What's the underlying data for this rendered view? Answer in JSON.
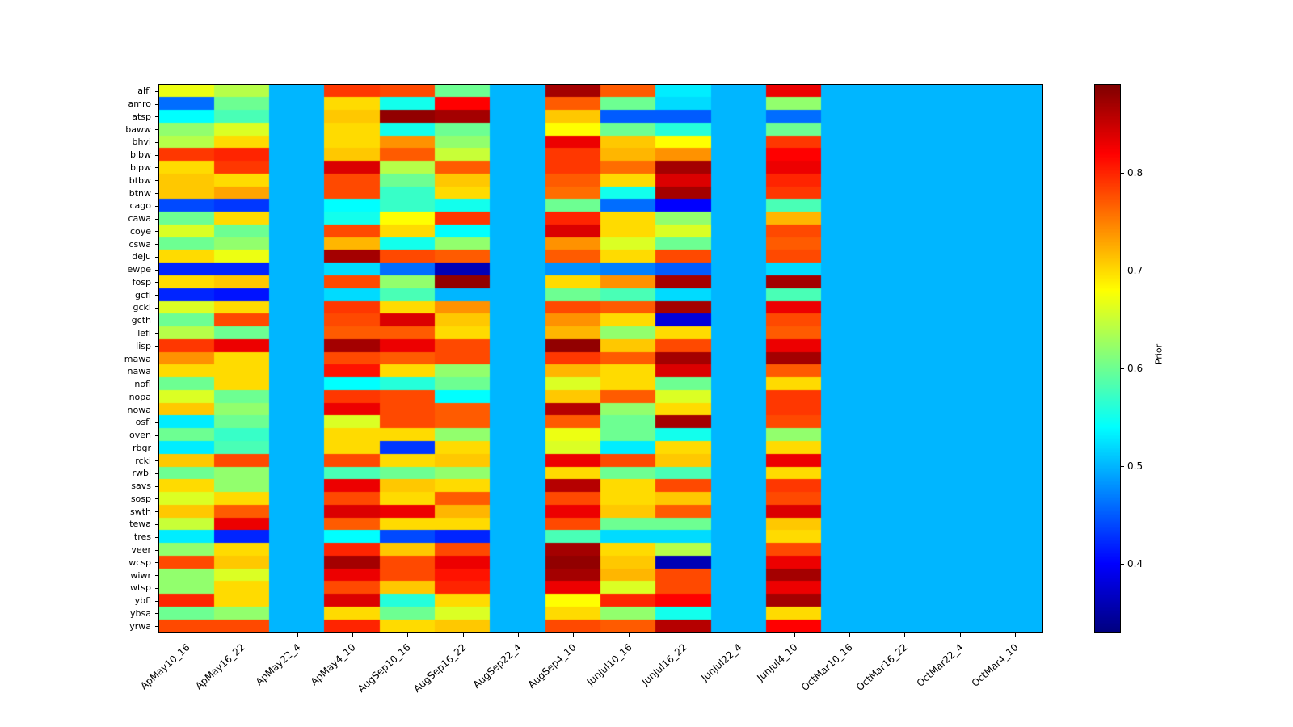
{
  "chart_data": {
    "type": "heatmap",
    "colormap": "jet",
    "vmin": 0.33,
    "vmax": 0.89,
    "uniform_fill_value": 0.5,
    "colorbar_label": "Prior",
    "colorbar_ticks": [
      0.8,
      0.7,
      0.6,
      0.5,
      0.4
    ],
    "rows": [
      "alfl",
      "amro",
      "atsp",
      "baww",
      "bhvi",
      "blbw",
      "blpw",
      "btbw",
      "btnw",
      "cago",
      "cawa",
      "coye",
      "cswa",
      "deju",
      "ewpe",
      "fosp",
      "gcfl",
      "gcki",
      "gcth",
      "lefl",
      "lisp",
      "mawa",
      "nawa",
      "nofl",
      "nopa",
      "nowa",
      "osfl",
      "oven",
      "rbgr",
      "rcki",
      "rwbl",
      "savs",
      "sosp",
      "swth",
      "tewa",
      "tres",
      "veer",
      "wcsp",
      "wiwr",
      "wtsp",
      "ybfl",
      "ybsa",
      "yrwa"
    ],
    "columns": [
      "ApMay10_16",
      "ApMay16_22",
      "ApMay22_4",
      "ApMay4_10",
      "AugSep10_16",
      "AugSep16_22",
      "AugSep22_4",
      "AugSep4_10",
      "JunJul10_16",
      "JunJul16_22",
      "JunJul22_4",
      "JunJul4_10",
      "OctMar10_16",
      "OctMar16_22",
      "OctMar22_4",
      "OctMar4_10"
    ],
    "values": [
      [
        0.67,
        0.64,
        0.5,
        0.79,
        0.78,
        0.6,
        0.5,
        0.87,
        0.77,
        0.53,
        0.5,
        0.83,
        0.5,
        0.5,
        0.5,
        0.5
      ],
      [
        0.46,
        0.6,
        0.5,
        0.7,
        0.55,
        0.82,
        0.5,
        0.77,
        0.6,
        0.52,
        0.5,
        0.62,
        0.5,
        0.5,
        0.5,
        0.5
      ],
      [
        0.54,
        0.58,
        0.5,
        0.71,
        0.88,
        0.87,
        0.5,
        0.71,
        0.45,
        0.45,
        0.5,
        0.46,
        0.5,
        0.5,
        0.5,
        0.5
      ],
      [
        0.62,
        0.66,
        0.5,
        0.7,
        0.55,
        0.6,
        0.5,
        0.68,
        0.6,
        0.56,
        0.5,
        0.6,
        0.5,
        0.5,
        0.5,
        0.5
      ],
      [
        0.64,
        0.7,
        0.5,
        0.7,
        0.74,
        0.62,
        0.5,
        0.83,
        0.71,
        0.68,
        0.5,
        0.79,
        0.5,
        0.5,
        0.5,
        0.5
      ],
      [
        0.79,
        0.8,
        0.5,
        0.71,
        0.77,
        0.65,
        0.5,
        0.79,
        0.72,
        0.74,
        0.5,
        0.82,
        0.5,
        0.5,
        0.5,
        0.5
      ],
      [
        0.7,
        0.79,
        0.5,
        0.84,
        0.64,
        0.77,
        0.5,
        0.79,
        0.76,
        0.87,
        0.5,
        0.83,
        0.5,
        0.5,
        0.5,
        0.5
      ],
      [
        0.71,
        0.7,
        0.5,
        0.78,
        0.6,
        0.71,
        0.5,
        0.77,
        0.7,
        0.84,
        0.5,
        0.8,
        0.5,
        0.5,
        0.5,
        0.5
      ],
      [
        0.71,
        0.73,
        0.5,
        0.78,
        0.57,
        0.7,
        0.5,
        0.76,
        0.55,
        0.87,
        0.5,
        0.79,
        0.5,
        0.5,
        0.5,
        0.5
      ],
      [
        0.44,
        0.43,
        0.5,
        0.54,
        0.57,
        0.55,
        0.5,
        0.6,
        0.46,
        0.4,
        0.5,
        0.58,
        0.5,
        0.5,
        0.5,
        0.5
      ],
      [
        0.6,
        0.7,
        0.5,
        0.55,
        0.68,
        0.79,
        0.5,
        0.8,
        0.7,
        0.62,
        0.5,
        0.72,
        0.5,
        0.5,
        0.5,
        0.5
      ],
      [
        0.66,
        0.6,
        0.5,
        0.78,
        0.7,
        0.54,
        0.5,
        0.84,
        0.7,
        0.66,
        0.5,
        0.78,
        0.5,
        0.5,
        0.5,
        0.5
      ],
      [
        0.6,
        0.62,
        0.5,
        0.72,
        0.55,
        0.62,
        0.5,
        0.74,
        0.66,
        0.6,
        0.5,
        0.77,
        0.5,
        0.5,
        0.5,
        0.5
      ],
      [
        0.7,
        0.67,
        0.5,
        0.87,
        0.78,
        0.77,
        0.5,
        0.77,
        0.7,
        0.78,
        0.5,
        0.78,
        0.5,
        0.5,
        0.5,
        0.5
      ],
      [
        0.42,
        0.42,
        0.5,
        0.52,
        0.46,
        0.36,
        0.5,
        0.48,
        0.47,
        0.45,
        0.5,
        0.52,
        0.5,
        0.5,
        0.5,
        0.5
      ],
      [
        0.7,
        0.71,
        0.5,
        0.78,
        0.62,
        0.88,
        0.5,
        0.7,
        0.74,
        0.87,
        0.5,
        0.87,
        0.5,
        0.5,
        0.5,
        0.5
      ],
      [
        0.42,
        0.41,
        0.5,
        0.52,
        0.58,
        0.5,
        0.5,
        0.6,
        0.58,
        0.52,
        0.5,
        0.58,
        0.5,
        0.5,
        0.5,
        0.5
      ],
      [
        0.66,
        0.7,
        0.5,
        0.79,
        0.7,
        0.74,
        0.5,
        0.78,
        0.77,
        0.87,
        0.5,
        0.83,
        0.5,
        0.5,
        0.5,
        0.5
      ],
      [
        0.6,
        0.78,
        0.5,
        0.78,
        0.84,
        0.71,
        0.5,
        0.74,
        0.7,
        0.38,
        0.5,
        0.78,
        0.5,
        0.5,
        0.5,
        0.5
      ],
      [
        0.64,
        0.6,
        0.5,
        0.77,
        0.77,
        0.7,
        0.5,
        0.72,
        0.62,
        0.7,
        0.5,
        0.77,
        0.5,
        0.5,
        0.5,
        0.5
      ],
      [
        0.79,
        0.83,
        0.5,
        0.87,
        0.83,
        0.78,
        0.5,
        0.88,
        0.71,
        0.78,
        0.5,
        0.83,
        0.5,
        0.5,
        0.5,
        0.5
      ],
      [
        0.74,
        0.7,
        0.5,
        0.78,
        0.77,
        0.78,
        0.5,
        0.79,
        0.77,
        0.87,
        0.5,
        0.87,
        0.5,
        0.5,
        0.5,
        0.5
      ],
      [
        0.7,
        0.7,
        0.5,
        0.81,
        0.7,
        0.62,
        0.5,
        0.72,
        0.7,
        0.84,
        0.5,
        0.77,
        0.5,
        0.5,
        0.5,
        0.5
      ],
      [
        0.6,
        0.7,
        0.5,
        0.54,
        0.56,
        0.6,
        0.5,
        0.66,
        0.7,
        0.6,
        0.5,
        0.7,
        0.5,
        0.5,
        0.5,
        0.5
      ],
      [
        0.66,
        0.6,
        0.5,
        0.79,
        0.78,
        0.54,
        0.5,
        0.71,
        0.77,
        0.66,
        0.5,
        0.79,
        0.5,
        0.5,
        0.5,
        0.5
      ],
      [
        0.71,
        0.62,
        0.5,
        0.83,
        0.78,
        0.77,
        0.5,
        0.86,
        0.62,
        0.7,
        0.5,
        0.79,
        0.5,
        0.5,
        0.5,
        0.5
      ],
      [
        0.53,
        0.6,
        0.5,
        0.66,
        0.78,
        0.77,
        0.5,
        0.77,
        0.6,
        0.87,
        0.5,
        0.78,
        0.5,
        0.5,
        0.5,
        0.5
      ],
      [
        0.6,
        0.57,
        0.5,
        0.7,
        0.7,
        0.62,
        0.5,
        0.67,
        0.6,
        0.55,
        0.5,
        0.62,
        0.5,
        0.5,
        0.5,
        0.5
      ],
      [
        0.53,
        0.58,
        0.5,
        0.7,
        0.43,
        0.7,
        0.5,
        0.66,
        0.53,
        0.7,
        0.5,
        0.7,
        0.5,
        0.5,
        0.5,
        0.5
      ],
      [
        0.71,
        0.78,
        0.5,
        0.78,
        0.7,
        0.71,
        0.5,
        0.83,
        0.78,
        0.71,
        0.5,
        0.83,
        0.5,
        0.5,
        0.5,
        0.5
      ],
      [
        0.6,
        0.62,
        0.5,
        0.58,
        0.6,
        0.62,
        0.5,
        0.7,
        0.6,
        0.58,
        0.5,
        0.7,
        0.5,
        0.5,
        0.5,
        0.5
      ],
      [
        0.7,
        0.62,
        0.5,
        0.83,
        0.71,
        0.7,
        0.5,
        0.86,
        0.7,
        0.78,
        0.5,
        0.79,
        0.5,
        0.5,
        0.5,
        0.5
      ],
      [
        0.66,
        0.7,
        0.5,
        0.78,
        0.7,
        0.77,
        0.5,
        0.78,
        0.7,
        0.71,
        0.5,
        0.78,
        0.5,
        0.5,
        0.5,
        0.5
      ],
      [
        0.71,
        0.77,
        0.5,
        0.84,
        0.83,
        0.72,
        0.5,
        0.83,
        0.71,
        0.77,
        0.5,
        0.84,
        0.5,
        0.5,
        0.5,
        0.5
      ],
      [
        0.65,
        0.83,
        0.5,
        0.77,
        0.7,
        0.7,
        0.5,
        0.78,
        0.6,
        0.6,
        0.5,
        0.71,
        0.5,
        0.5,
        0.5,
        0.5
      ],
      [
        0.53,
        0.42,
        0.5,
        0.54,
        0.44,
        0.42,
        0.5,
        0.58,
        0.52,
        0.52,
        0.5,
        0.7,
        0.5,
        0.5,
        0.5,
        0.5
      ],
      [
        0.62,
        0.7,
        0.5,
        0.8,
        0.71,
        0.78,
        0.5,
        0.87,
        0.7,
        0.64,
        0.5,
        0.78,
        0.5,
        0.5,
        0.5,
        0.5
      ],
      [
        0.78,
        0.71,
        0.5,
        0.87,
        0.78,
        0.83,
        0.5,
        0.88,
        0.71,
        0.36,
        0.5,
        0.83,
        0.5,
        0.5,
        0.5,
        0.5
      ],
      [
        0.62,
        0.66,
        0.5,
        0.83,
        0.78,
        0.81,
        0.5,
        0.87,
        0.72,
        0.78,
        0.5,
        0.87,
        0.5,
        0.5,
        0.5,
        0.5
      ],
      [
        0.62,
        0.7,
        0.5,
        0.78,
        0.71,
        0.8,
        0.5,
        0.83,
        0.66,
        0.78,
        0.5,
        0.83,
        0.5,
        0.5,
        0.5,
        0.5
      ],
      [
        0.8,
        0.7,
        0.5,
        0.84,
        0.56,
        0.7,
        0.5,
        0.68,
        0.8,
        0.82,
        0.5,
        0.87,
        0.5,
        0.5,
        0.5,
        0.5
      ],
      [
        0.6,
        0.62,
        0.5,
        0.7,
        0.6,
        0.66,
        0.5,
        0.7,
        0.62,
        0.55,
        0.5,
        0.7,
        0.5,
        0.5,
        0.5,
        0.5
      ],
      [
        0.78,
        0.78,
        0.5,
        0.8,
        0.7,
        0.71,
        0.5,
        0.78,
        0.77,
        0.86,
        0.5,
        0.82,
        0.5,
        0.5,
        0.5,
        0.5
      ]
    ]
  }
}
